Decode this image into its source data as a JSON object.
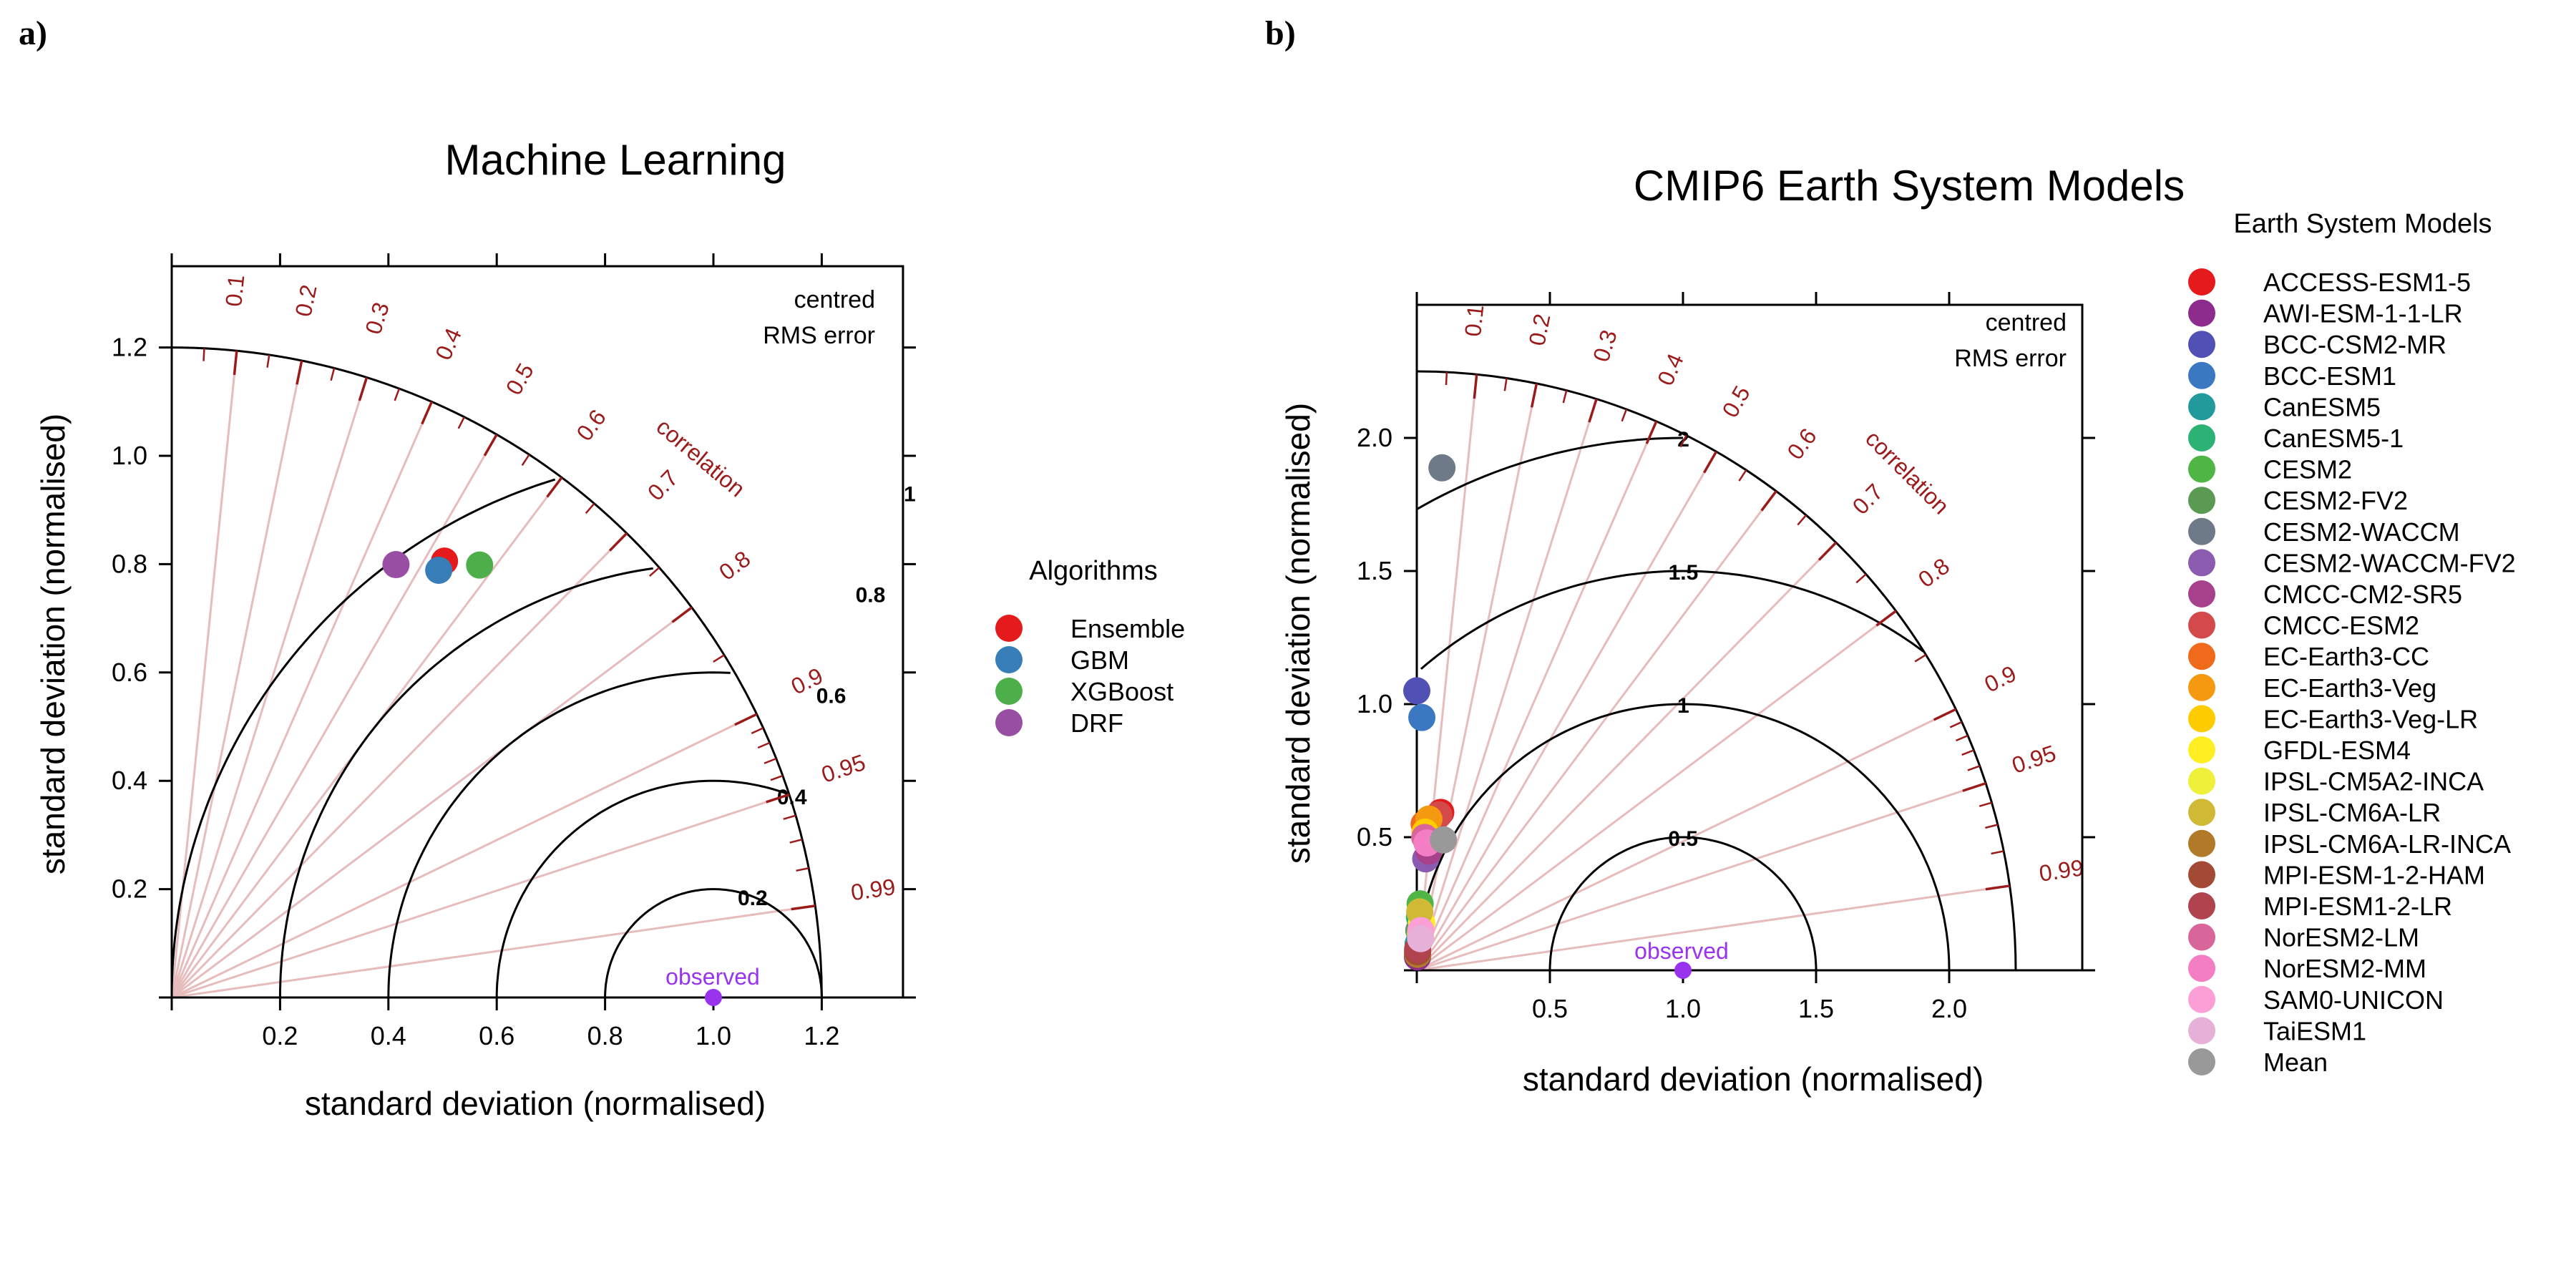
{
  "chart_data": [
    {
      "type": "taylor",
      "panel_label": "a)",
      "title": "Machine Learning",
      "xlabel": "standard deviation (normalised)",
      "ylabel": "standard deviation (normalised)",
      "axis_range": [
        0,
        1.35
      ],
      "tick_values": [
        0.2,
        0.4,
        0.6,
        0.8,
        1.0,
        1.2
      ],
      "tick_labels": [
        "0.2",
        "0.4",
        "0.6",
        "0.8",
        "1.0",
        "1.2"
      ],
      "max_sd": 1.2,
      "correlation_axis_title": "correlation",
      "correlation_labels": [
        "0.1",
        "0.2",
        "0.3",
        "0.4",
        "0.5",
        "0.6",
        "0.7",
        "0.8",
        "0.9",
        "0.95",
        "0.99"
      ],
      "rms_contours": [
        0.2,
        0.4,
        0.6,
        0.8,
        1
      ],
      "rms_contour_labels": [
        "0.2",
        "0.4",
        "0.6",
        "0.8",
        "1"
      ],
      "rms_caption": [
        "centred",
        "RMS error"
      ],
      "observed_label": "observed",
      "observed_sd": 1.0,
      "legend_title": "Algorithms",
      "points": [
        {
          "name": "Ensemble",
          "color": "#e41a1c",
          "sd": 0.95,
          "corr": 0.53
        },
        {
          "name": "GBM",
          "color": "#377eb8",
          "sd": 0.93,
          "corr": 0.53
        },
        {
          "name": "XGBoost",
          "color": "#4daf4a",
          "sd": 0.98,
          "corr": 0.58
        },
        {
          "name": "DRF",
          "color": "#984ea3",
          "sd": 0.9,
          "corr": 0.46
        }
      ]
    },
    {
      "type": "taylor",
      "panel_label": "b)",
      "title": "CMIP6 Earth System Models",
      "xlabel": "standard deviation (normalised)",
      "ylabel": "standard deviation (normalised)",
      "axis_range": [
        0,
        2.5
      ],
      "tick_values": [
        0.5,
        1.0,
        1.5,
        2.0
      ],
      "tick_labels": [
        "0.5",
        "1.0",
        "1.5",
        "2.0"
      ],
      "max_sd": 2.25,
      "correlation_axis_title": "correlation",
      "correlation_labels": [
        "0.1",
        "0.2",
        "0.3",
        "0.4",
        "0.5",
        "0.6",
        "0.7",
        "0.8",
        "0.9",
        "0.95",
        "0.99"
      ],
      "rms_contours": [
        0.5,
        1,
        1.5,
        2
      ],
      "rms_contour_labels": [
        "0.5",
        "1",
        "1.5",
        "2"
      ],
      "rms_caption": [
        "centred",
        "RMS error"
      ],
      "observed_label": "observed",
      "observed_sd": 1.0,
      "legend_title": "Earth System Models",
      "points": [
        {
          "name": "ACCESS-ESM1-5",
          "color": "#e41a1c",
          "sd": 0.6,
          "corr": 0.15
        },
        {
          "name": "AWI-ESM-1-1-LR",
          "color": "#8e2c8e",
          "sd": 0.05,
          "corr": 0.05
        },
        {
          "name": "BCC-CSM2-MR",
          "color": "#5050b5",
          "sd": 1.05,
          "corr": 0.0
        },
        {
          "name": "BCC-ESM1",
          "color": "#3a78c2",
          "sd": 0.95,
          "corr": 0.02
        },
        {
          "name": "CanESM5",
          "color": "#22999a",
          "sd": 0.1,
          "corr": 0.05
        },
        {
          "name": "CanESM5-1",
          "color": "#2bb274",
          "sd": 0.2,
          "corr": 0.05
        },
        {
          "name": "CESM2",
          "color": "#4fb545",
          "sd": 0.25,
          "corr": 0.05
        },
        {
          "name": "CESM2-FV2",
          "color": "#5a9a52",
          "sd": 0.15,
          "corr": 0.05
        },
        {
          "name": "CESM2-WACCM",
          "color": "#6e7a87",
          "sd": 1.89,
          "corr": 0.05
        },
        {
          "name": "CESM2-WACCM-FV2",
          "color": "#8b5bb0",
          "sd": 0.42,
          "corr": 0.08
        },
        {
          "name": "CMCC-CM2-SR5",
          "color": "#a8418c",
          "sd": 0.45,
          "corr": 0.1
        },
        {
          "name": "CMCC-ESM2",
          "color": "#d44a4a",
          "sd": 0.59,
          "corr": 0.14
        },
        {
          "name": "EC-Earth3-CC",
          "color": "#ef6a1a",
          "sd": 0.55,
          "corr": 0.05
        },
        {
          "name": "EC-Earth3-Veg",
          "color": "#f59a10",
          "sd": 0.57,
          "corr": 0.08
        },
        {
          "name": "EC-Earth3-Veg-LR",
          "color": "#ffcc00",
          "sd": 0.52,
          "corr": 0.06
        },
        {
          "name": "GFDL-ESM4",
          "color": "#ffee22",
          "sd": 0.18,
          "corr": 0.1
        },
        {
          "name": "IPSL-CM5A2-INCA",
          "color": "#eef03a",
          "sd": 0.14,
          "corr": 0.1
        },
        {
          "name": "IPSL-CM6A-LR",
          "color": "#d0b935",
          "sd": 0.22,
          "corr": 0.05
        },
        {
          "name": "IPSL-CM6A-LR-INCA",
          "color": "#b07a28",
          "sd": 0.06,
          "corr": 0.05
        },
        {
          "name": "MPI-ESM-1-2-HAM",
          "color": "#a24a33",
          "sd": 0.07,
          "corr": 0.04
        },
        {
          "name": "MPI-ESM1-2-LR",
          "color": "#b0434e",
          "sd": 0.08,
          "corr": 0.04
        },
        {
          "name": "NorESM2-LM",
          "color": "#d9669a",
          "sd": 0.5,
          "corr": 0.06
        },
        {
          "name": "NorESM2-MM",
          "color": "#f47ec4",
          "sd": 0.48,
          "corr": 0.08
        },
        {
          "name": "SAM0-UNICON",
          "color": "#fb9fd6",
          "sd": 0.15,
          "corr": 0.1
        },
        {
          "name": "TaiESM1",
          "color": "#e6b0d8",
          "sd": 0.12,
          "corr": 0.12
        },
        {
          "name": "Mean",
          "color": "#999999",
          "sd": 0.5,
          "corr": 0.2
        }
      ]
    }
  ]
}
